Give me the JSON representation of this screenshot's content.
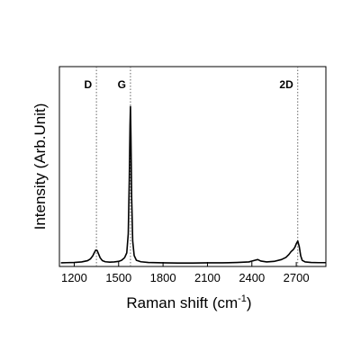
{
  "chart_data": {
    "type": "line",
    "title": "",
    "xlabel": "Raman shift (cm",
    "xlabel_sup": "-1",
    "xlabel_close": ")",
    "ylabel": "Intensity (Arb.Unit)",
    "xlim": [
      1100,
      2900
    ],
    "ylim": [
      0,
      1.1
    ],
    "xticks": [
      1200,
      1500,
      1800,
      2100,
      2400,
      2700
    ],
    "xtick_labels": [
      "1200",
      "1500",
      "1800",
      "2100",
      "2400",
      "2700"
    ],
    "y_tick_labels_shown": false,
    "grid": false,
    "line_color": "#000000",
    "peak_markers": [
      {
        "label": "D",
        "x": 1350
      },
      {
        "label": "G",
        "x": 1580
      },
      {
        "label": "2D",
        "x": 2710
      }
    ],
    "series": [
      {
        "x": [
          1110,
          1150,
          1200,
          1250,
          1290,
          1310,
          1325,
          1335,
          1345,
          1355,
          1365,
          1375,
          1390,
          1410,
          1440,
          1470,
          1500,
          1520,
          1540,
          1555,
          1565,
          1572,
          1577,
          1580,
          1583,
          1588,
          1595,
          1605,
          1620,
          1650,
          1700,
          1800,
          1900,
          2000,
          2100,
          2200,
          2300,
          2380,
          2420,
          2440,
          2460,
          2500,
          2550,
          2600,
          2630,
          2650,
          2665,
          2680,
          2690,
          2700,
          2710,
          2720,
          2730,
          2740,
          2760,
          2800,
          2850,
          2900
        ],
        "y": [
          0.02,
          0.021,
          0.022,
          0.025,
          0.032,
          0.042,
          0.058,
          0.075,
          0.09,
          0.088,
          0.068,
          0.048,
          0.032,
          0.026,
          0.024,
          0.025,
          0.028,
          0.034,
          0.048,
          0.075,
          0.18,
          0.48,
          0.78,
          0.88,
          0.72,
          0.38,
          0.14,
          0.06,
          0.034,
          0.026,
          0.022,
          0.02,
          0.019,
          0.019,
          0.02,
          0.02,
          0.022,
          0.025,
          0.034,
          0.038,
          0.03,
          0.025,
          0.028,
          0.038,
          0.05,
          0.066,
          0.082,
          0.093,
          0.105,
          0.125,
          0.14,
          0.11,
          0.058,
          0.034,
          0.025,
          0.022,
          0.021,
          0.021
        ]
      }
    ]
  }
}
